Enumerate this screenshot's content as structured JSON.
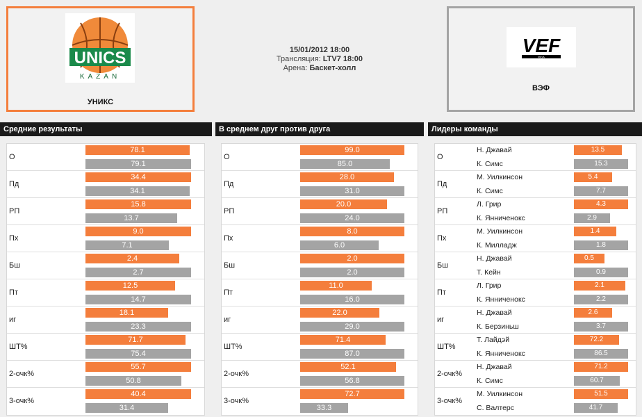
{
  "match": {
    "datetime": "15/01/2012 18:00",
    "broadcast_label": "Трансляция:",
    "broadcast": "LTV7 18:00",
    "arena_label": "Арена:",
    "arena": "Баскет-холл"
  },
  "home": {
    "name": "УНИКС",
    "logo": "UNICS KAZAN"
  },
  "away": {
    "name": "ВЭФ",
    "logo": "VEF RIGA"
  },
  "colors": {
    "home": "#f47e3c",
    "away": "#a4a4a4",
    "header": "#1a1a1a"
  },
  "panels": [
    {
      "title": "Средние результаты",
      "rows": [
        {
          "label": "О",
          "home": "78.1",
          "away": "79.1",
          "home_frac": 0.99,
          "away_frac": 1.0
        },
        {
          "label": "Пд",
          "home": "34.4",
          "away": "34.1",
          "home_frac": 1.0,
          "away_frac": 0.99
        },
        {
          "label": "РП",
          "home": "15.8",
          "away": "13.7",
          "home_frac": 1.0,
          "away_frac": 0.87
        },
        {
          "label": "Пх",
          "home": "9.0",
          "away": "7.1",
          "home_frac": 1.0,
          "away_frac": 0.79
        },
        {
          "label": "Бш",
          "home": "2.4",
          "away": "2.7",
          "home_frac": 0.89,
          "away_frac": 1.0
        },
        {
          "label": "Пт",
          "home": "12.5",
          "away": "14.7",
          "home_frac": 0.85,
          "away_frac": 1.0
        },
        {
          "label": "иг",
          "home": "18.1",
          "away": "23.3",
          "home_frac": 0.78,
          "away_frac": 1.0
        },
        {
          "label": "ШТ%",
          "home": "71.7",
          "away": "75.4",
          "home_frac": 0.95,
          "away_frac": 1.0
        },
        {
          "label": "2-очк%",
          "home": "55.7",
          "away": "50.8",
          "home_frac": 1.0,
          "away_frac": 0.91
        },
        {
          "label": "3-очк%",
          "home": "40.4",
          "away": "31.4",
          "home_frac": 1.0,
          "away_frac": 0.78
        }
      ]
    },
    {
      "title": "В среднем друг против друга",
      "rows": [
        {
          "label": "О",
          "home": "99.0",
          "away": "85.0",
          "home_frac": 1.0,
          "away_frac": 0.86
        },
        {
          "label": "Пд",
          "home": "28.0",
          "away": "31.0",
          "home_frac": 0.9,
          "away_frac": 1.0
        },
        {
          "label": "РП",
          "home": "20.0",
          "away": "24.0",
          "home_frac": 0.83,
          "away_frac": 1.0
        },
        {
          "label": "Пх",
          "home": "8.0",
          "away": "6.0",
          "home_frac": 1.0,
          "away_frac": 0.75
        },
        {
          "label": "Бш",
          "home": "2.0",
          "away": "2.0",
          "home_frac": 1.0,
          "away_frac": 1.0
        },
        {
          "label": "Пт",
          "home": "11.0",
          "away": "16.0",
          "home_frac": 0.69,
          "away_frac": 1.0
        },
        {
          "label": "иг",
          "home": "22.0",
          "away": "29.0",
          "home_frac": 0.76,
          "away_frac": 1.0
        },
        {
          "label": "ШТ%",
          "home": "71.4",
          "away": "87.0",
          "home_frac": 0.82,
          "away_frac": 1.0
        },
        {
          "label": "2-очк%",
          "home": "52.1",
          "away": "56.8",
          "home_frac": 0.92,
          "away_frac": 1.0
        },
        {
          "label": "3-очк%",
          "home": "72.7",
          "away": "33.3",
          "home_frac": 1.0,
          "away_frac": 0.46
        }
      ]
    },
    {
      "title": "Лидеры команды",
      "rows": [
        {
          "label": "О",
          "home_player": "Н. Джавай",
          "away_player": "К. Симс",
          "home": "13.5",
          "away": "15.3",
          "home_frac": 0.88,
          "away_frac": 1.0
        },
        {
          "label": "Пд",
          "home_player": "М. Уилкинсон",
          "away_player": "К. Симс",
          "home": "5.4",
          "away": "7.7",
          "home_frac": 0.7,
          "away_frac": 1.0
        },
        {
          "label": "РП",
          "home_player": "Л. Грир",
          "away_player": "К. Янниченокс",
          "home": "4.3",
          "away": "2.9",
          "home_frac": 1.0,
          "away_frac": 0.67
        },
        {
          "label": "Пх",
          "home_player": "М. Уилкинсон",
          "away_player": "К. Милладж",
          "home": "1.4",
          "away": "1.8",
          "home_frac": 0.78,
          "away_frac": 1.0
        },
        {
          "label": "Бш",
          "home_player": "Н. Джавай",
          "away_player": "Т. Кейн",
          "home": "0.5",
          "away": "0.9",
          "home_frac": 0.56,
          "away_frac": 1.0
        },
        {
          "label": "Пт",
          "home_player": "Л. Грир",
          "away_player": "К. Янниченокс",
          "home": "2.1",
          "away": "2.2",
          "home_frac": 0.95,
          "away_frac": 1.0
        },
        {
          "label": "иг",
          "home_player": "Н. Джавай",
          "away_player": "К. Берзиньш",
          "home": "2.6",
          "away": "3.7",
          "home_frac": 0.7,
          "away_frac": 1.0
        },
        {
          "label": "ШТ%",
          "home_player": "Т. Лайдэй",
          "away_player": "К. Янниченокс",
          "home": "72.2",
          "away": "86.5",
          "home_frac": 0.83,
          "away_frac": 1.0
        },
        {
          "label": "2-очк%",
          "home_player": "Н. Джавай",
          "away_player": "К. Симс",
          "home": "71.2",
          "away": "60.7",
          "home_frac": 1.0,
          "away_frac": 0.85
        },
        {
          "label": "3-очк%",
          "home_player": "М. Уилкинсон",
          "away_player": "С. Валтерс",
          "home": "51.5",
          "away": "41.7",
          "home_frac": 1.0,
          "away_frac": 0.81
        }
      ]
    }
  ]
}
